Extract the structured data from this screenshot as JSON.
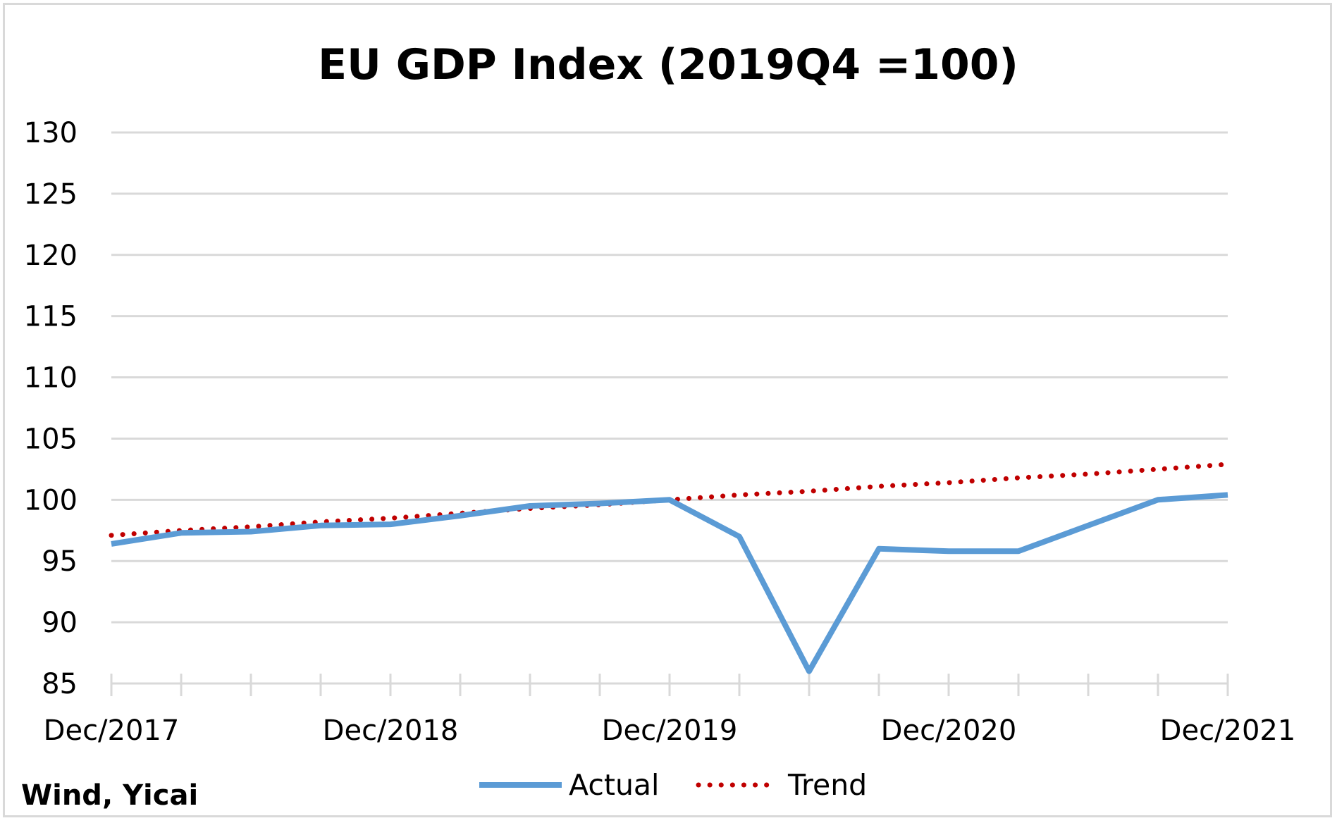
{
  "chart_data": {
    "type": "line",
    "title": "EU GDP Index (2019Q4 =100)",
    "xlabel": "",
    "ylabel": "",
    "ylim": [
      85,
      130
    ],
    "yticks": [
      "130",
      "125",
      "120",
      "115",
      "110",
      "105",
      "100",
      "95",
      "90",
      "85"
    ],
    "x": [
      "Dec/2017",
      "Mar/2018",
      "Jun/2018",
      "Sep/2018",
      "Dec/2018",
      "Mar/2019",
      "Jun/2019",
      "Sep/2019",
      "Dec/2019",
      "Mar/2020",
      "Jun/2020",
      "Sep/2020",
      "Dec/2020",
      "Mar/2021",
      "Jun/2021",
      "Sep/2021",
      "Dec/2021"
    ],
    "xtick_labels": [
      "Dec/2017",
      "Dec/2018",
      "Dec/2019",
      "Dec/2020",
      "Dec/2021"
    ],
    "series": [
      {
        "name": "Actual",
        "color": "#5b9bd5",
        "style": "solid",
        "values": [
          96.4,
          97.3,
          97.4,
          97.9,
          98.0,
          98.7,
          99.5,
          99.7,
          100.0,
          97.0,
          86.0,
          96.0,
          95.8,
          95.8,
          97.9,
          100.0,
          100.4
        ]
      },
      {
        "name": "Trend",
        "color": "#c00000",
        "style": "dotted",
        "values": [
          97.1,
          97.5,
          97.8,
          98.2,
          98.5,
          98.9,
          99.3,
          99.6,
          100.0,
          100.4,
          100.7,
          101.1,
          101.4,
          101.8,
          102.1,
          102.5,
          102.9
        ]
      }
    ],
    "grid": "horizontal",
    "legend": "bottom-center"
  },
  "source_note": "Wind, Yicai"
}
